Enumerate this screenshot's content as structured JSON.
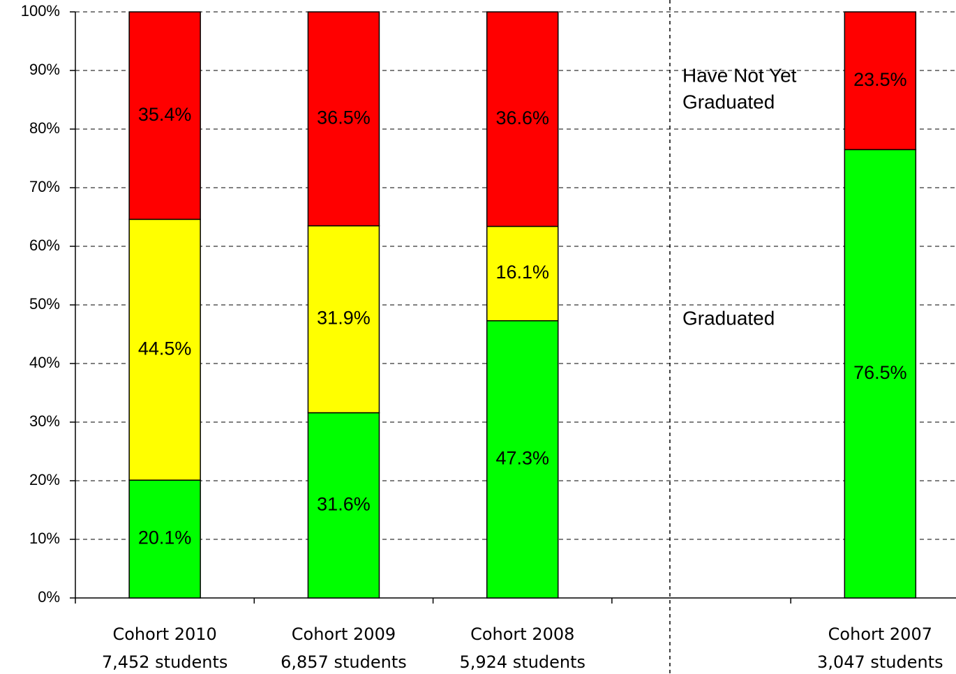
{
  "chart_data": {
    "type": "stacked-bar",
    "categories": [
      [
        "Cohort 2010",
        "7,452 students"
      ],
      [
        "Cohort 2009",
        "6,857 students"
      ],
      [
        "Cohort 2008",
        "5,924 students"
      ],
      null,
      [
        "Cohort 2007",
        "3,047 students"
      ]
    ],
    "series": [
      {
        "color": "#00ff00",
        "values": [
          20.1,
          31.6,
          47.3,
          null,
          76.5
        ],
        "value_labels": [
          "20.1%",
          "31.6%",
          "47.3%",
          null,
          "76.5%"
        ]
      },
      {
        "color": "#ffff00",
        "values": [
          44.5,
          31.9,
          16.1,
          null,
          null
        ],
        "value_labels": [
          "44.5%",
          "31.9%",
          "16.1%",
          null,
          null
        ]
      },
      {
        "color": "#ff0000",
        "values": [
          35.4,
          36.5,
          36.6,
          null,
          23.5
        ],
        "value_labels": [
          "35.4%",
          "36.5%",
          "36.6%",
          null,
          "23.5%"
        ]
      }
    ],
    "annotations": [
      [
        "Have Not Yet",
        "Graduated"
      ],
      [
        "Graduated"
      ]
    ],
    "ylim": [
      0,
      100
    ],
    "yticks": [
      {
        "value": 0,
        "label": "0%"
      },
      {
        "value": 10,
        "label": "10%"
      },
      {
        "value": 20,
        "label": "20%"
      },
      {
        "value": 30,
        "label": "30%"
      },
      {
        "value": 40,
        "label": "40%"
      },
      {
        "value": 50,
        "label": "50%"
      },
      {
        "value": 60,
        "label": "60%"
      },
      {
        "value": 70,
        "label": "70%"
      },
      {
        "value": 80,
        "label": "80%"
      },
      {
        "value": 90,
        "label": "90%"
      },
      {
        "value": 100,
        "label": "100%"
      }
    ],
    "grid": true
  }
}
